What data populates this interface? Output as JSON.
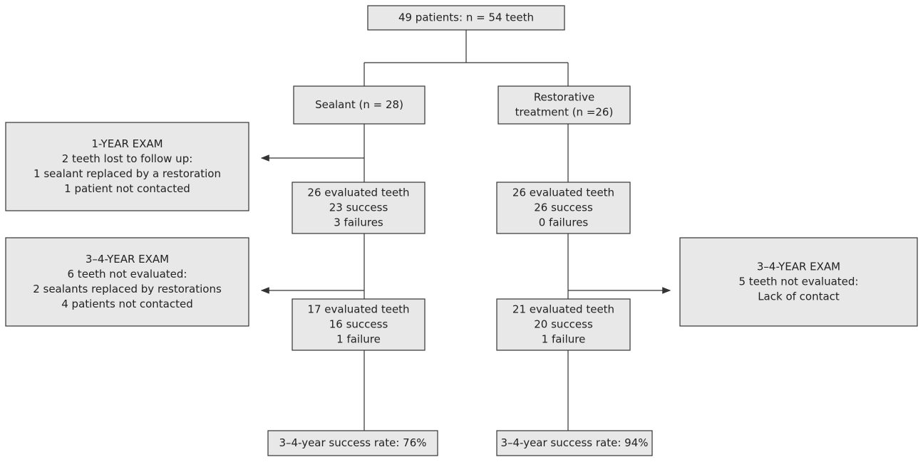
{
  "nodes": [
    {
      "lines": [
        "49 patients: n = 54 teeth"
      ]
    },
    {
      "lines": [
        "Sealant (n = 28)"
      ]
    },
    {
      "lines": [
        "Restorative",
        "treatment (n =26)"
      ]
    },
    {
      "lines": [
        "1-YEAR EXAM",
        "2 teeth lost to follow up:",
        "1 sealant replaced by a restoration",
        "1 patient not contacted"
      ]
    },
    {
      "lines": [
        "26 evaluated teeth",
        "23 success",
        "3 failures"
      ]
    },
    {
      "lines": [
        "26 evaluated teeth",
        "26 success",
        "0 failures"
      ]
    },
    {
      "lines": [
        "3–4-YEAR EXAM",
        "6 teeth not evaluated:",
        "2 sealants replaced by restorations",
        "4 patients not contacted"
      ]
    },
    {
      "lines": [
        "3–4-YEAR EXAM",
        "5 teeth not evaluated:",
        "Lack of contact"
      ]
    },
    {
      "lines": [
        "17 evaluated teeth",
        "16 success",
        "1 failure"
      ]
    },
    {
      "lines": [
        "21 evaluated teeth",
        "20 success",
        "1 failure"
      ]
    },
    {
      "lines": [
        "3–4-year success rate: 76%"
      ]
    },
    {
      "lines": [
        "3–4-year success rate: 94%"
      ]
    }
  ]
}
